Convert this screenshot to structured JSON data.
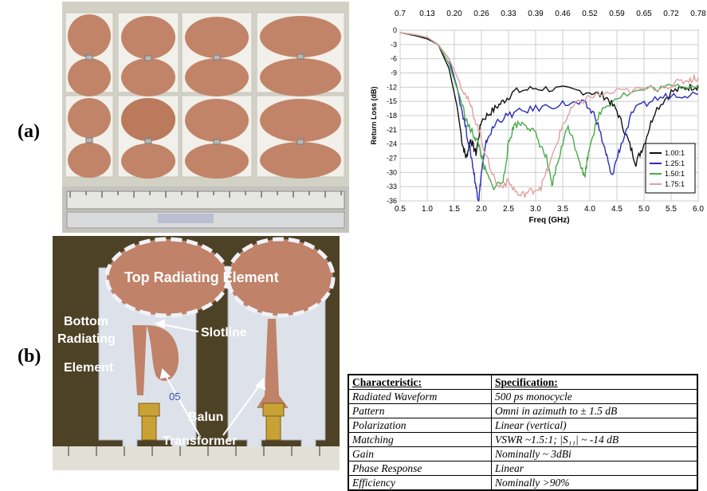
{
  "panel_labels": {
    "a": "(a)",
    "b": "(b)"
  },
  "photo_b_annotations": {
    "top": "Top Radiating Element",
    "slot": "Slotline",
    "bottom_1": "Bottom",
    "bottom_2": "Radiating",
    "bottom_3": "Element",
    "balun_1": "Balun",
    "balun_2": "Transformer",
    "board_id": "05"
  },
  "colors": {
    "copper": "#c08268",
    "board": "#dde2ea",
    "background_b": "#4e4226"
  },
  "chart_data": {
    "type": "line",
    "xlabel": "Freq (GHz)",
    "ylabel": "Return Loss (dB)",
    "xlim": [
      0.5,
      6.0
    ],
    "ylim": [
      -36,
      0
    ],
    "x_ticks": [
      "0.5",
      "1.0",
      "1.5",
      "2.0",
      "2.5",
      "3.0",
      "3.5",
      "4.0",
      "4.5",
      "5.0",
      "5.5",
      "6.0"
    ],
    "y_ticks": [
      "0",
      "-3",
      "-6",
      "-9",
      "-12",
      "-15",
      "-18",
      "-21",
      "-24",
      "-27",
      "-30",
      "-33",
      "-36"
    ],
    "top_ticks": [
      "0.7",
      "0.13",
      "0.20",
      "0.26",
      "0.33",
      "0.39",
      "0.46",
      "0.52",
      "0.59",
      "0.65",
      "0.72",
      "0.78"
    ],
    "grid": true,
    "legend": "bottom-right",
    "series": [
      {
        "name": "1.00:1",
        "color": "#111111",
        "points": [
          [
            0.5,
            -0.5
          ],
          [
            0.8,
            -1.2
          ],
          [
            1.0,
            -1.8
          ],
          [
            1.2,
            -3
          ],
          [
            1.4,
            -8
          ],
          [
            1.55,
            -16
          ],
          [
            1.65,
            -24
          ],
          [
            1.72,
            -27
          ],
          [
            1.8,
            -23
          ],
          [
            1.9,
            -26
          ],
          [
            2.0,
            -19
          ],
          [
            2.2,
            -17
          ],
          [
            2.4,
            -15
          ],
          [
            2.6,
            -13
          ],
          [
            3.0,
            -12.2
          ],
          [
            3.5,
            -12.5
          ],
          [
            4.0,
            -13
          ],
          [
            4.3,
            -14
          ],
          [
            4.5,
            -17
          ],
          [
            4.7,
            -23
          ],
          [
            4.85,
            -28
          ],
          [
            5.0,
            -24
          ],
          [
            5.2,
            -17
          ],
          [
            5.5,
            -13
          ],
          [
            5.8,
            -12
          ],
          [
            6.0,
            -11.8
          ]
        ]
      },
      {
        "name": "1.25:1",
        "color": "#2b2bb8",
        "points": [
          [
            0.5,
            -0.5
          ],
          [
            0.8,
            -1
          ],
          [
            1.0,
            -1.5
          ],
          [
            1.2,
            -3
          ],
          [
            1.4,
            -6
          ],
          [
            1.55,
            -12
          ],
          [
            1.7,
            -20
          ],
          [
            1.82,
            -27
          ],
          [
            1.9,
            -33
          ],
          [
            1.95,
            -36
          ],
          [
            2.0,
            -30
          ],
          [
            2.1,
            -23
          ],
          [
            2.3,
            -19
          ],
          [
            2.6,
            -17.5
          ],
          [
            3.0,
            -16.5
          ],
          [
            3.5,
            -15.5
          ],
          [
            3.9,
            -15.5
          ],
          [
            4.1,
            -18
          ],
          [
            4.3,
            -26
          ],
          [
            4.4,
            -31
          ],
          [
            4.55,
            -25
          ],
          [
            4.8,
            -17
          ],
          [
            5.2,
            -14.5
          ],
          [
            5.6,
            -13.5
          ],
          [
            6.0,
            -13.5
          ]
        ]
      },
      {
        "name": "1.50:1",
        "color": "#4aaa4a",
        "points": [
          [
            0.5,
            -0.5
          ],
          [
            0.8,
            -1
          ],
          [
            1.0,
            -1.5
          ],
          [
            1.2,
            -3
          ],
          [
            1.4,
            -7
          ],
          [
            1.6,
            -14
          ],
          [
            1.75,
            -20
          ],
          [
            1.85,
            -22
          ],
          [
            1.95,
            -24
          ],
          [
            2.05,
            -29
          ],
          [
            2.2,
            -33
          ],
          [
            2.4,
            -32
          ],
          [
            2.5,
            -24
          ],
          [
            2.6,
            -20
          ],
          [
            2.8,
            -19.5
          ],
          [
            3.0,
            -22
          ],
          [
            3.2,
            -27
          ],
          [
            3.3,
            -33
          ],
          [
            3.4,
            -28
          ],
          [
            3.6,
            -20
          ],
          [
            3.8,
            -27
          ],
          [
            3.9,
            -31
          ],
          [
            4.0,
            -24
          ],
          [
            4.2,
            -17
          ],
          [
            4.5,
            -14
          ],
          [
            5.0,
            -12.5
          ],
          [
            5.5,
            -12
          ],
          [
            6.0,
            -11.5
          ]
        ]
      },
      {
        "name": "1.75:1",
        "color": "#e0a0a0",
        "points": [
          [
            0.5,
            -0.5
          ],
          [
            0.8,
            -1
          ],
          [
            1.0,
            -1.5
          ],
          [
            1.2,
            -3
          ],
          [
            1.4,
            -6
          ],
          [
            1.6,
            -11
          ],
          [
            1.8,
            -16
          ],
          [
            1.95,
            -21
          ],
          [
            2.1,
            -27
          ],
          [
            2.3,
            -33
          ],
          [
            2.5,
            -32
          ],
          [
            2.7,
            -35
          ],
          [
            2.9,
            -34
          ],
          [
            3.1,
            -33
          ],
          [
            3.3,
            -27
          ],
          [
            3.5,
            -20
          ],
          [
            3.7,
            -16
          ],
          [
            4.0,
            -14
          ],
          [
            4.5,
            -13
          ],
          [
            5.0,
            -12.5
          ],
          [
            5.5,
            -11.5
          ],
          [
            5.8,
            -10.5
          ],
          [
            6.0,
            -10
          ]
        ]
      }
    ]
  },
  "table": {
    "headers": [
      "Characteristic:",
      "Specification:"
    ],
    "rows": [
      [
        "Radiated Waveform",
        "500 ps monocycle"
      ],
      [
        "Pattern",
        "Omni in azimuth to ± 1.5 dB"
      ],
      [
        "Polarization",
        "Linear (vertical)"
      ],
      [
        "Matching",
        "VSWR ~1.5:1; |S₁₁| ~ -14 dB"
      ],
      [
        "Gain",
        "Nominally ~ 3dBi"
      ],
      [
        "Phase Response",
        "Linear"
      ],
      [
        "Efficiency",
        "Nominally >90%"
      ]
    ]
  }
}
